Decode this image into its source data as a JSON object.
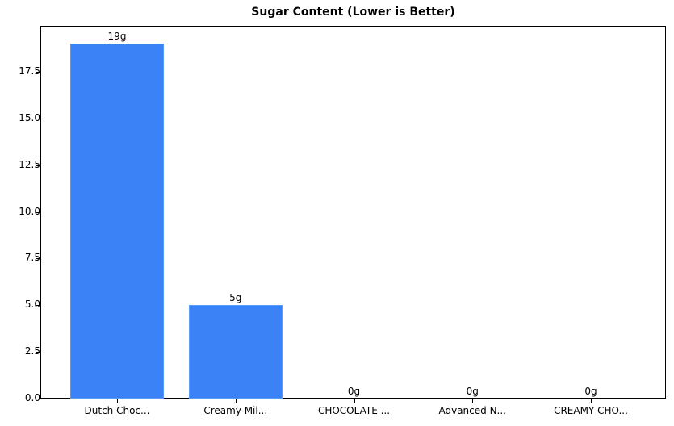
{
  "chart_data": {
    "type": "bar",
    "title": "Sugar Content (Lower is Better)",
    "xlabel": "",
    "ylabel": "",
    "categories": [
      "Dutch Choc...",
      "Creamy Mil...",
      "CHOCOLATE ...",
      "Advanced N...",
      "CREAMY CHO..."
    ],
    "values": [
      19,
      5,
      0,
      0,
      0
    ],
    "bar_labels": [
      "19g",
      "5g",
      "0g",
      "0g",
      "0g"
    ],
    "ylim": [
      0,
      19.95
    ],
    "yticks": [
      "0.0",
      "2.5",
      "5.0",
      "7.5",
      "10.0",
      "12.5",
      "15.0",
      "17.5"
    ],
    "bar_color": "#3b82f6",
    "grid": false,
    "legend": null
  }
}
